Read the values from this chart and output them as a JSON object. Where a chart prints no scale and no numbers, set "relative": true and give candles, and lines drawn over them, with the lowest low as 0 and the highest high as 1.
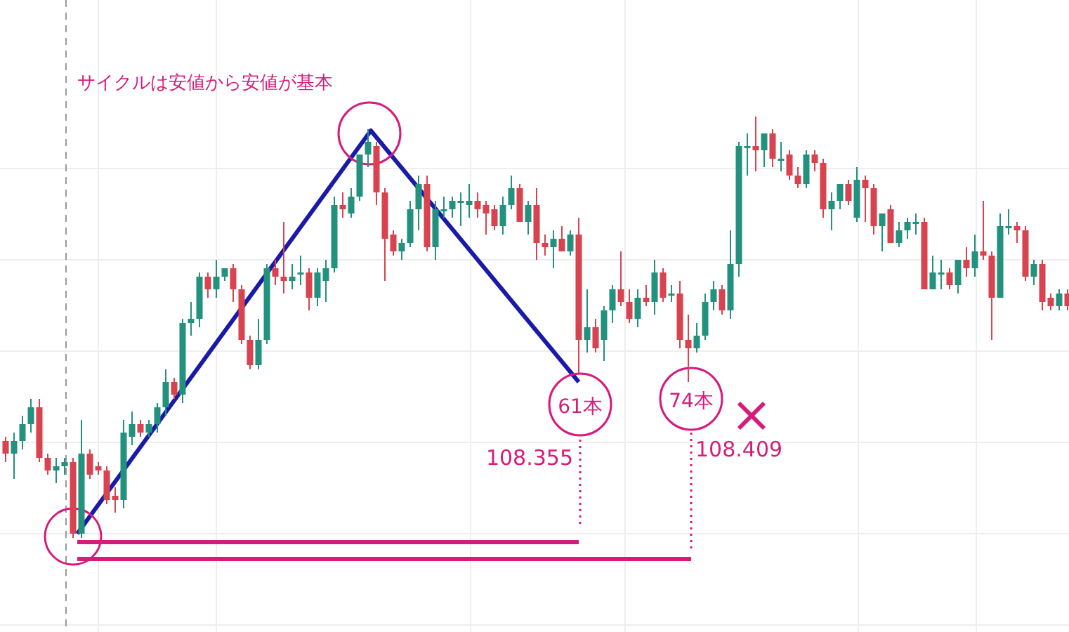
{
  "chart_data": {
    "type": "candlestick",
    "title": "サイクルは安値から安値が基本",
    "relative": true,
    "grid": true,
    "categories": [
      null,
      null,
      null,
      null,
      null,
      null,
      null,
      null,
      null,
      null,
      null,
      null,
      null,
      null,
      null,
      null,
      null,
      null,
      null,
      null,
      null,
      null,
      null,
      null,
      null,
      null,
      null,
      null,
      null,
      null,
      null,
      null,
      null,
      null,
      null,
      null,
      null,
      null,
      null,
      null,
      null,
      null,
      null,
      null,
      null,
      null,
      null,
      null,
      null,
      null,
      null,
      null,
      null,
      null,
      null,
      null,
      null,
      null,
      null,
      null,
      null,
      null,
      null,
      null,
      null,
      null,
      null,
      null,
      null,
      null,
      null,
      null,
      null,
      null,
      null,
      null,
      null,
      null,
      null,
      null,
      null,
      null,
      null,
      null,
      null,
      null,
      null,
      null,
      null,
      null,
      null,
      null,
      null,
      null,
      null,
      null,
      null,
      null,
      null,
      null,
      null,
      null,
      null,
      null,
      null,
      null,
      null,
      null,
      null,
      null,
      null,
      null,
      null,
      null,
      null,
      null,
      null,
      null,
      null,
      null,
      null,
      null,
      null,
      null,
      null,
      null,
      null
    ],
    "ohlc": [
      [
        0.23,
        0.24,
        0.18,
        0.2
      ],
      [
        0.2,
        0.25,
        0.14,
        0.23
      ],
      [
        0.23,
        0.29,
        0.21,
        0.27
      ],
      [
        0.27,
        0.33,
        0.25,
        0.31
      ],
      [
        0.31,
        0.33,
        0.18,
        0.19
      ],
      [
        0.19,
        0.2,
        0.15,
        0.16
      ],
      [
        0.16,
        0.19,
        0.13,
        0.17
      ],
      [
        0.17,
        0.19,
        0.15,
        0.18
      ],
      [
        0.18,
        0.19,
        0,
        0.01
      ],
      [
        0.01,
        0.28,
        0,
        0.2
      ],
      [
        0.2,
        0.21,
        0.14,
        0.15
      ],
      [
        0.17,
        0.18,
        0.15,
        0.16
      ],
      [
        0.16,
        0.17,
        0.08,
        0.09
      ],
      [
        0.1,
        0.12,
        0.06,
        0.09
      ],
      [
        0.09,
        0.28,
        0.07,
        0.25
      ],
      [
        0.24,
        0.3,
        0.22,
        0.27
      ],
      [
        0.27,
        0.28,
        0.24,
        0.25
      ],
      [
        0.25,
        0.28,
        0.24,
        0.27
      ],
      [
        0.27,
        0.32,
        0.25,
        0.31
      ],
      [
        0.31,
        0.4,
        0.29,
        0.37
      ],
      [
        0.37,
        0.38,
        0.33,
        0.34
      ],
      [
        0.34,
        0.52,
        0.32,
        0.51
      ],
      [
        0.51,
        0.56,
        0.48,
        0.52
      ],
      [
        0.52,
        0.63,
        0.5,
        0.62
      ],
      [
        0.62,
        0.63,
        0.57,
        0.59
      ],
      [
        0.59,
        0.66,
        0.57,
        0.62
      ],
      [
        0.62,
        0.64,
        0.61,
        0.64
      ],
      [
        0.64,
        0.65,
        0.56,
        0.59
      ],
      [
        0.59,
        0.6,
        0.46,
        0.47
      ],
      [
        0.47,
        0.48,
        0.4,
        0.41
      ],
      [
        0.41,
        0.52,
        0.4,
        0.47
      ],
      [
        0.47,
        0.65,
        0.46,
        0.64
      ],
      [
        0.64,
        0.66,
        0.6,
        0.62
      ],
      [
        0.62,
        0.75,
        0.58,
        0.61
      ],
      [
        0.61,
        0.65,
        0.59,
        0.62
      ],
      [
        0.63,
        0.67,
        0.6,
        0.63
      ],
      [
        0.63,
        0.64,
        0.54,
        0.57
      ],
      [
        0.57,
        0.64,
        0.55,
        0.63
      ],
      [
        0.61,
        0.66,
        0.56,
        0.64
      ],
      [
        0.64,
        0.81,
        0.63,
        0.79
      ],
      [
        0.79,
        0.82,
        0.76,
        0.78
      ],
      [
        0.77,
        0.83,
        0.76,
        0.81
      ],
      [
        0.81,
        0.91,
        0.8,
        0.91
      ],
      [
        0.91,
        0.97,
        0.88,
        0.94
      ],
      [
        0.93,
        0.94,
        0.79,
        0.82
      ],
      [
        0.82,
        0.83,
        0.61,
        0.71
      ],
      [
        0.72,
        0.73,
        0.67,
        0.68
      ],
      [
        0.68,
        0.71,
        0.66,
        0.7
      ],
      [
        0.7,
        0.8,
        0.69,
        0.78
      ],
      [
        0.78,
        0.86,
        0.73,
        0.84
      ],
      [
        0.84,
        0.86,
        0.68,
        0.69
      ],
      [
        0.69,
        0.8,
        0.66,
        0.78
      ],
      [
        0.78,
        0.81,
        0.76,
        0.78
      ],
      [
        0.78,
        0.81,
        0.76,
        0.8
      ],
      [
        0.8,
        0.82,
        0.74,
        0.8
      ],
      [
        0.79,
        0.84,
        0.76,
        0.8
      ],
      [
        0.8,
        0.82,
        0.76,
        0.78
      ],
      [
        0.79,
        0.8,
        0.72,
        0.77
      ],
      [
        0.78,
        0.79,
        0.73,
        0.74
      ],
      [
        0.74,
        0.81,
        0.72,
        0.79
      ],
      [
        0.79,
        0.86,
        0.78,
        0.83
      ],
      [
        0.83,
        0.84,
        0.75,
        0.75
      ],
      [
        0.75,
        0.8,
        0.72,
        0.79
      ],
      [
        0.79,
        0.83,
        0.66,
        0.7
      ],
      [
        0.7,
        0.72,
        0.67,
        0.69
      ],
      [
        0.69,
        0.73,
        0.64,
        0.71
      ],
      [
        0.71,
        0.74,
        0.68,
        0.68
      ],
      [
        0.68,
        0.73,
        0.67,
        0.72
      ],
      [
        0.72,
        0.76,
        0.39,
        0.47
      ],
      [
        0.47,
        0.59,
        0.44,
        0.5
      ],
      [
        0.5,
        0.52,
        0.44,
        0.45
      ],
      [
        0.47,
        0.55,
        0.42,
        0.54
      ],
      [
        0.54,
        0.6,
        0.51,
        0.59
      ],
      [
        0.59,
        0.68,
        0.55,
        0.56
      ],
      [
        0.56,
        0.59,
        0.51,
        0.52
      ],
      [
        0.52,
        0.59,
        0.5,
        0.57
      ],
      [
        0.57,
        0.6,
        0.55,
        0.56
      ],
      [
        0.56,
        0.66,
        0.53,
        0.63
      ],
      [
        0.63,
        0.64,
        0.56,
        0.57
      ],
      [
        0.58,
        0.6,
        0.56,
        0.58
      ],
      [
        0.58,
        0.61,
        0.45,
        0.47
      ],
      [
        0.47,
        0.53,
        0.37,
        0.45
      ],
      [
        0.45,
        0.51,
        0.44,
        0.48
      ],
      [
        0.48,
        0.58,
        0.47,
        0.56
      ],
      [
        0.56,
        0.61,
        0.54,
        0.59
      ],
      [
        0.59,
        0.6,
        0.53,
        0.54
      ],
      [
        0.54,
        0.73,
        0.52,
        0.65
      ],
      [
        0.65,
        0.94,
        0.62,
        0.93
      ],
      [
        0.93,
        0.96,
        0.86,
        0.93
      ],
      [
        0.93,
        1.0,
        0.87,
        0.92
      ],
      [
        0.92,
        0.96,
        0.88,
        0.96
      ],
      [
        0.96,
        0.97,
        0.88,
        0.9
      ],
      [
        0.9,
        0.94,
        0.87,
        0.9
      ],
      [
        0.91,
        0.92,
        0.85,
        0.86
      ],
      [
        0.86,
        0.88,
        0.83,
        0.84
      ],
      [
        0.84,
        0.92,
        0.83,
        0.91
      ],
      [
        0.91,
        0.92,
        0.87,
        0.89
      ],
      [
        0.89,
        0.9,
        0.76,
        0.78
      ],
      [
        0.78,
        0.82,
        0.73,
        0.8
      ],
      [
        0.8,
        0.84,
        0.78,
        0.84
      ],
      [
        0.84,
        0.85,
        0.79,
        0.8
      ],
      [
        0.76,
        0.88,
        0.75,
        0.85
      ],
      [
        0.85,
        0.86,
        0.75,
        0.83
      ],
      [
        0.83,
        0.84,
        0.72,
        0.74
      ],
      [
        0.74,
        0.77,
        0.68,
        0.77
      ],
      [
        0.78,
        0.79,
        0.7,
        0.7
      ],
      [
        0.7,
        0.75,
        0.69,
        0.73
      ],
      [
        0.73,
        0.76,
        0.71,
        0.75
      ],
      [
        0.75,
        0.77,
        0.72,
        0.75
      ],
      [
        0.75,
        0.76,
        0.59,
        0.59
      ],
      [
        0.59,
        0.67,
        0.59,
        0.63
      ],
      [
        0.63,
        0.66,
        0.59,
        0.63
      ],
      [
        0.63,
        0.64,
        0.59,
        0.6
      ],
      [
        0.6,
        0.66,
        0.58,
        0.66
      ],
      [
        0.66,
        0.69,
        0.62,
        0.64
      ],
      [
        0.64,
        0.72,
        0.62,
        0.68
      ],
      [
        0.68,
        0.8,
        0.66,
        0.67
      ],
      [
        0.67,
        0.68,
        0.47,
        0.57
      ],
      [
        0.57,
        0.77,
        0.57,
        0.74
      ],
      [
        0.74,
        0.78,
        0.72,
        0.74
      ],
      [
        0.74,
        0.75,
        0.7,
        0.73
      ],
      [
        0.73,
        0.74,
        0.61,
        0.62
      ],
      [
        0.62,
        0.66,
        0.6,
        0.65
      ],
      [
        0.65,
        0.66,
        0.54,
        0.56
      ],
      [
        0.57,
        0.58,
        0.54,
        0.55
      ],
      [
        0.55,
        0.59,
        0.54,
        0.58
      ],
      [
        0.58,
        0.59,
        0.54,
        0.55
      ]
    ],
    "colors": [
      "#d9424f",
      "#22917d",
      "#22917d",
      "#22917d",
      "#d9424f",
      "#d9424f",
      "#22917d",
      "#22917d",
      "#d9424f",
      "#22917d",
      "#d9424f",
      "#d9424f",
      "#d9424f",
      "#d9424f",
      "#22917d",
      "#22917d",
      "#d9424f",
      "#22917d",
      "#22917d",
      "#22917d",
      "#d9424f",
      "#22917d",
      "#22917d",
      "#22917d",
      "#d9424f",
      "#22917d",
      "#22917d",
      "#d9424f",
      "#d9424f",
      "#d9424f",
      "#22917d",
      "#22917d",
      "#d9424f",
      "#d9424f",
      "#22917d",
      "#22917d",
      "#d9424f",
      "#22917d",
      "#22917d",
      "#22917d",
      "#d9424f",
      "#22917d",
      "#22917d",
      "#22917d",
      "#d9424f",
      "#d9424f",
      "#d9424f",
      "#22917d",
      "#22917d",
      "#22917d",
      "#d9424f",
      "#22917d",
      "#22917d",
      "#22917d",
      "#22917d",
      "#22917d",
      "#d9424f",
      "#d9424f",
      "#d9424f",
      "#22917d",
      "#22917d",
      "#d9424f",
      "#22917d",
      "#d9424f",
      "#d9424f",
      "#22917d",
      "#d9424f",
      "#22917d",
      "#d9424f",
      "#22917d",
      "#d9424f",
      "#22917d",
      "#22917d",
      "#d9424f",
      "#d9424f",
      "#22917d",
      "#d9424f",
      "#22917d",
      "#d9424f",
      "#22917d",
      "#d9424f",
      "#d9424f",
      "#22917d",
      "#22917d",
      "#22917d",
      "#d9424f",
      "#22917d",
      "#22917d",
      "#22917d",
      "#d9424f",
      "#22917d",
      "#d9424f",
      "#22917d",
      "#d9424f",
      "#d9424f",
      "#22917d",
      "#d9424f",
      "#d9424f",
      "#22917d",
      "#22917d",
      "#d9424f",
      "#22917d",
      "#d9424f",
      "#d9424f",
      "#22917d",
      "#d9424f",
      "#22917d",
      "#22917d",
      "#22917d",
      "#d9424f",
      "#22917d",
      "#22917d",
      "#d9424f",
      "#22917d",
      "#d9424f",
      "#22917d",
      "#d9424f",
      "#d9424f",
      "#22917d",
      "#22917d",
      "#d9424f",
      "#d9424f",
      "#22917d",
      "#d9424f",
      "#d9424f",
      "#22917d",
      "#d9424f"
    ],
    "ref_lines": [
      {
        "axis": "y",
        "value": -0.01,
        "color": "#d81b7a"
      },
      {
        "axis": "y",
        "value": -0.05,
        "color": "#d81b7a"
      }
    ],
    "annotations": [
      "61本",
      "74本",
      "108.355",
      "108.409"
    ]
  }
}
